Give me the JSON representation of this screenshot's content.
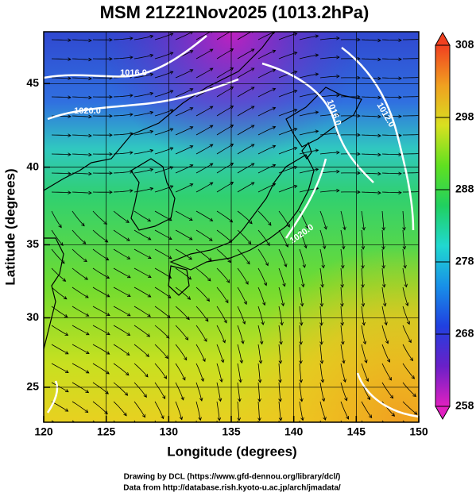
{
  "chart_data": {
    "type": "map",
    "title": "MSM 21Z21Nov2025 (1013.2hPa)",
    "x_label": "Longitude (degrees)",
    "y_label": "Latitude  (degrees)",
    "xlim": [
      120,
      150
    ],
    "ylim": [
      22.4,
      47.9
    ],
    "xticks": [
      120,
      125,
      130,
      135,
      140,
      145,
      150
    ],
    "yticks": [
      25,
      30,
      35,
      40,
      45
    ],
    "projection": "mercator",
    "grid": true,
    "colorbar": {
      "lim": [
        258,
        308
      ],
      "ticks": [
        258,
        268,
        278,
        288,
        298,
        308
      ],
      "colors": [
        "#e020c0",
        "#6a20c8",
        "#2040e0",
        "#1890e8",
        "#20d8d0",
        "#20d060",
        "#60e020",
        "#d8e020",
        "#f0a020",
        "#f04020"
      ]
    },
    "contour_labels": [
      "1016.0",
      "1020.0",
      "1016.0",
      "1012.0",
      "1020.0"
    ],
    "footer": [
      "Drawing by DCL (https://www.gfd-dennou.org/library/dcl/)",
      "Data from http://database.rish.kyoto-u.ac.jp/arch/jmadata/"
    ]
  }
}
